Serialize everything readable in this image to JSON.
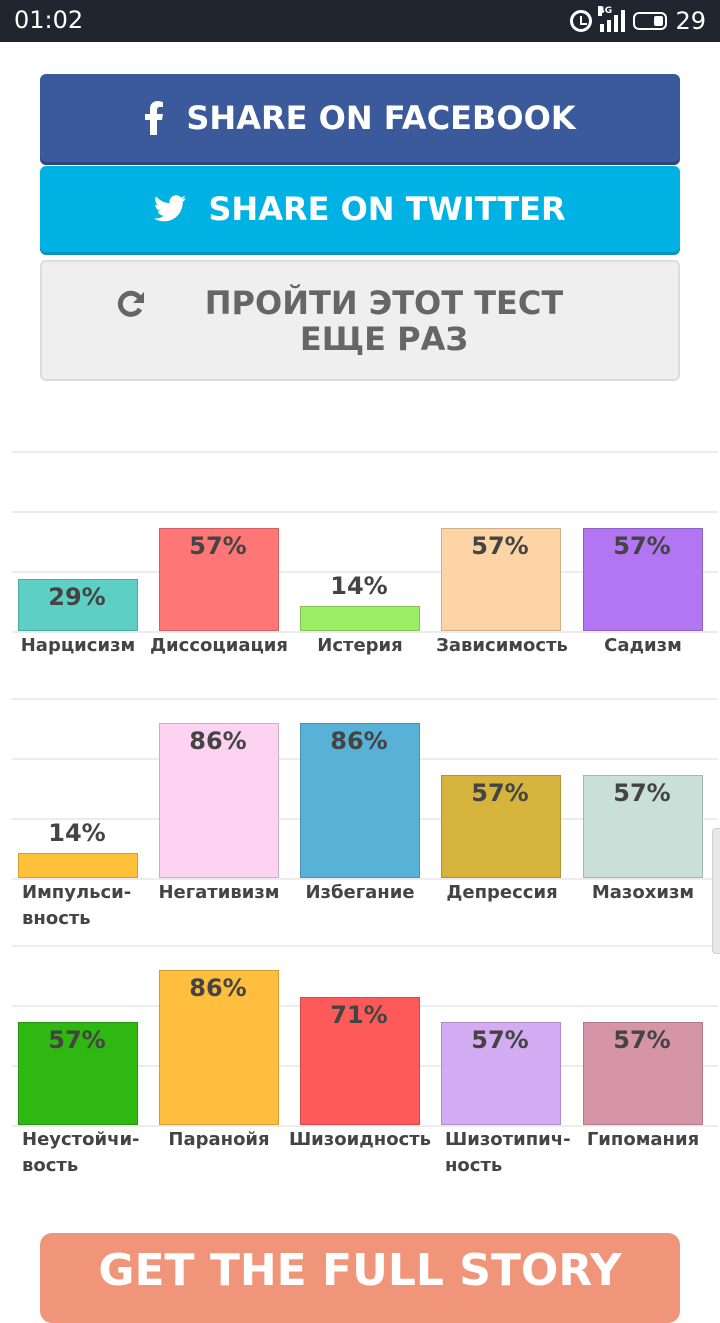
{
  "status_bar": {
    "time": "01:02",
    "network": "4G",
    "battery": "29"
  },
  "share": {
    "facebook_label": "SHARE ON FACEBOOK",
    "twitter_label": "SHARE ON TWITTER",
    "retake_label": "ПРОЙТИ ЭТОТ ТЕСТ ЕЩЕ РАЗ"
  },
  "chart_data": {
    "type": "bar",
    "ylim": [
      0,
      100
    ],
    "grid": true,
    "rows": [
      {
        "categories": [
          {
            "label": "Нарцисизм",
            "value": 29,
            "value_label": "29%",
            "color": "#5ecfc5"
          },
          {
            "label": "Диссоциация",
            "value": 57,
            "value_label": "57%",
            "color": "#ff7676"
          },
          {
            "label": "Истерия",
            "value": 14,
            "value_label": "14%",
            "color": "#9ded66"
          },
          {
            "label": "Зависимость",
            "value": 57,
            "value_label": "57%",
            "color": "#fdd4a6"
          },
          {
            "label": "Садизм",
            "value": 57,
            "value_label": "57%",
            "color": "#b276f2"
          }
        ]
      },
      {
        "categories": [
          {
            "label": "Импульси-\nвность",
            "value": 14,
            "value_label": "14%",
            "color": "#ffc13a"
          },
          {
            "label": "Негативизм",
            "value": 86,
            "value_label": "86%",
            "color": "#fdd3f1"
          },
          {
            "label": "Избегание",
            "value": 86,
            "value_label": "86%",
            "color": "#58b2d8"
          },
          {
            "label": "Депрессия",
            "value": 57,
            "value_label": "57%",
            "color": "#d6b33d"
          },
          {
            "label": "Мазохизм",
            "value": 57,
            "value_label": "57%",
            "color": "#c8e0d7"
          }
        ]
      },
      {
        "categories": [
          {
            "label": "Неустойчи-\nвость",
            "value": 57,
            "value_label": "57%",
            "color": "#2fb712"
          },
          {
            "label": "Паранойя",
            "value": 86,
            "value_label": "86%",
            "color": "#ffbe3d"
          },
          {
            "label": "Шизоидность",
            "value": 71,
            "value_label": "71%",
            "color": "#ff5a5a"
          },
          {
            "label": "Шизотипич-\nность",
            "value": 57,
            "value_label": "57%",
            "color": "#d4acf4"
          },
          {
            "label": "Гипомания",
            "value": 57,
            "value_label": "57%",
            "color": "#d595a6"
          }
        ]
      }
    ]
  },
  "cta": {
    "full_story_label": "GET THE FULL STORY"
  }
}
